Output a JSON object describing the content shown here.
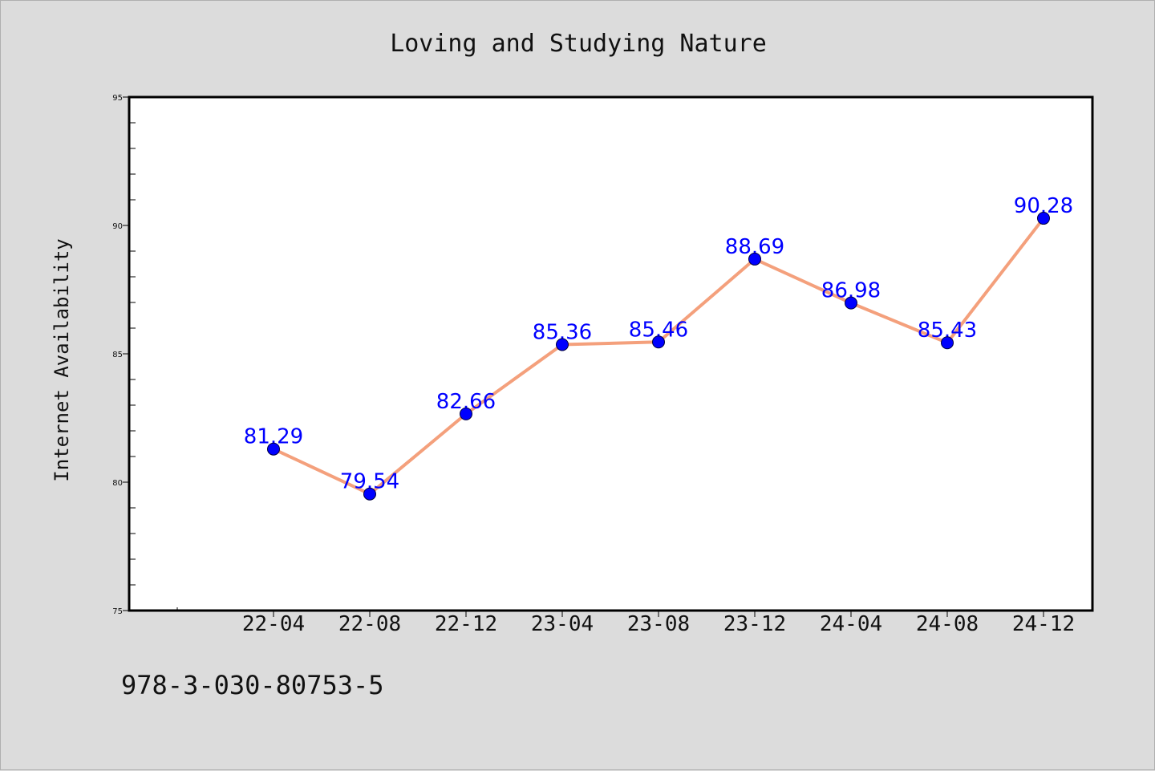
{
  "chart_data": {
    "type": "line",
    "title": "Loving and Studying Nature",
    "xlabel": "",
    "ylabel": "Internet Availability",
    "categories": [
      "22-04",
      "22-08",
      "22-12",
      "23-04",
      "23-08",
      "23-12",
      "24-04",
      "24-08",
      "24-12"
    ],
    "series": [
      {
        "values": [
          81.29,
          79.54,
          82.66,
          85.36,
          85.46,
          88.69,
          86.98,
          85.43,
          90.28
        ],
        "data_labels": [
          "81.29",
          "79.54",
          "82.66",
          "85.36",
          "85.46",
          "88.69",
          "86.98",
          "85.43",
          "90.28"
        ]
      }
    ],
    "ylim": [
      75,
      95
    ],
    "yticks": [
      75,
      80,
      85,
      90,
      95
    ],
    "ytick_labels": [
      "75",
      "80",
      "85",
      "90",
      "95"
    ],
    "grid": false,
    "line_color": "#f4a07c",
    "marker_color": "#0000ff",
    "label_color": "#0000ff"
  },
  "footer": {
    "isbn": "978-3-030-80753-5"
  }
}
